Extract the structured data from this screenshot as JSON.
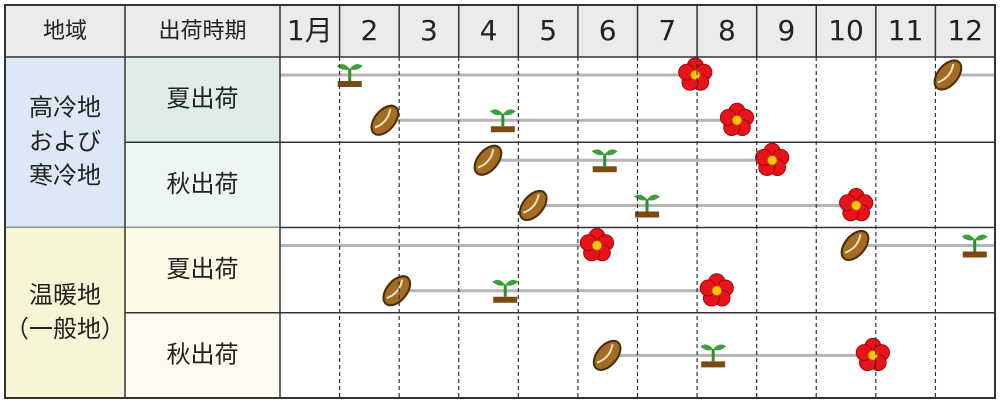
{
  "header": {
    "region": "地域",
    "season": "出荷時期",
    "months": [
      "1月",
      "2",
      "3",
      "4",
      "5",
      "6",
      "7",
      "8",
      "9",
      "10",
      "11",
      "12"
    ]
  },
  "regions": [
    {
      "label": [
        "高冷地",
        "および",
        "寒冷地"
      ],
      "color": "#dce8f6",
      "rows": [
        {
          "label": "夏出荷",
          "color": "#deeee6",
          "lines": [
            {
              "segments": [
                [
                  1,
                  7.97
                ],
                [
                  12.21,
                  13
                ]
              ],
              "events": [
                {
                  "kind": "sprout",
                  "month": 2.17
                },
                {
                  "kind": "flower",
                  "month": 7.97
                },
                {
                  "kind": "seed",
                  "month": 12.21
                }
              ]
            },
            {
              "segments": [
                [
                  2.76,
                  8.67
                ]
              ],
              "events": [
                {
                  "kind": "seed",
                  "month": 2.76
                },
                {
                  "kind": "sprout",
                  "month": 4.74
                },
                {
                  "kind": "flower",
                  "month": 8.67
                }
              ]
            }
          ]
        },
        {
          "label": "秋出荷",
          "color": "#eef6f2",
          "lines": [
            {
              "segments": [
                [
                  4.49,
                  9.26
                ]
              ],
              "events": [
                {
                  "kind": "seed",
                  "month": 4.49
                },
                {
                  "kind": "sprout",
                  "month": 6.45
                },
                {
                  "kind": "flower",
                  "month": 9.26
                }
              ]
            },
            {
              "segments": [
                [
                  5.25,
                  10.67
                ]
              ],
              "events": [
                {
                  "kind": "seed",
                  "month": 5.25
                },
                {
                  "kind": "sprout",
                  "month": 7.16
                },
                {
                  "kind": "flower",
                  "month": 10.67
                }
              ]
            }
          ]
        }
      ]
    },
    {
      "label": [
        "温暖地",
        "（一般地）"
      ],
      "color": "#f6f6d6",
      "rows": [
        {
          "label": "夏出荷",
          "color": "#fcfae4",
          "lines": [
            {
              "segments": [
                [
                  1,
                  6.32
                ],
                [
                  10.65,
                  13
                ]
              ],
              "events": [
                {
                  "kind": "flower",
                  "month": 6.32
                },
                {
                  "kind": "seed",
                  "month": 10.65
                },
                {
                  "kind": "sprout",
                  "month": 12.66
                }
              ]
            },
            {
              "segments": [
                [
                  2.96,
                  8.33
                ]
              ],
              "events": [
                {
                  "kind": "seed",
                  "month": 2.96
                },
                {
                  "kind": "sprout",
                  "month": 4.78
                },
                {
                  "kind": "flower",
                  "month": 8.33
                }
              ]
            }
          ]
        },
        {
          "label": "秋出荷",
          "color": "#fefcee",
          "lines": [
            {
              "segments": [
                [
                  6.49,
                  10.95
                ]
              ],
              "events": [
                {
                  "kind": "seed",
                  "month": 6.49
                },
                {
                  "kind": "sprout",
                  "month": 8.27
                },
                {
                  "kind": "flower",
                  "month": 10.95
                }
              ]
            }
          ]
        }
      ]
    }
  ]
}
